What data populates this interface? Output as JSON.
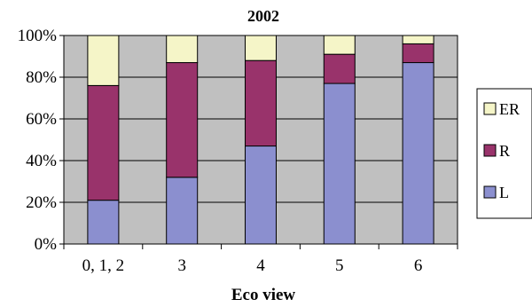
{
  "chart_data": {
    "type": "bar",
    "stacked": true,
    "normalized": true,
    "title": "2002",
    "xlabel": "Eco view",
    "ylabel": "",
    "categories": [
      "0, 1, 2",
      "3",
      "4",
      "5",
      "6"
    ],
    "ylim": [
      0,
      100
    ],
    "yticks": [
      "0%",
      "20%",
      "40%",
      "60%",
      "80%",
      "100%"
    ],
    "series": [
      {
        "name": "L",
        "color": "#8b8fcf",
        "values": [
          21,
          32,
          47,
          77,
          87
        ]
      },
      {
        "name": "R",
        "color": "#99336b",
        "values": [
          55,
          55,
          41,
          14,
          9
        ]
      },
      {
        "name": "ER",
        "color": "#f5f5c8",
        "values": [
          24,
          13,
          12,
          9,
          4
        ]
      }
    ],
    "legend_order": [
      "ER",
      "R",
      "L"
    ],
    "legend_position": "right",
    "grid": true,
    "plot_background": "#c0c0c0"
  }
}
